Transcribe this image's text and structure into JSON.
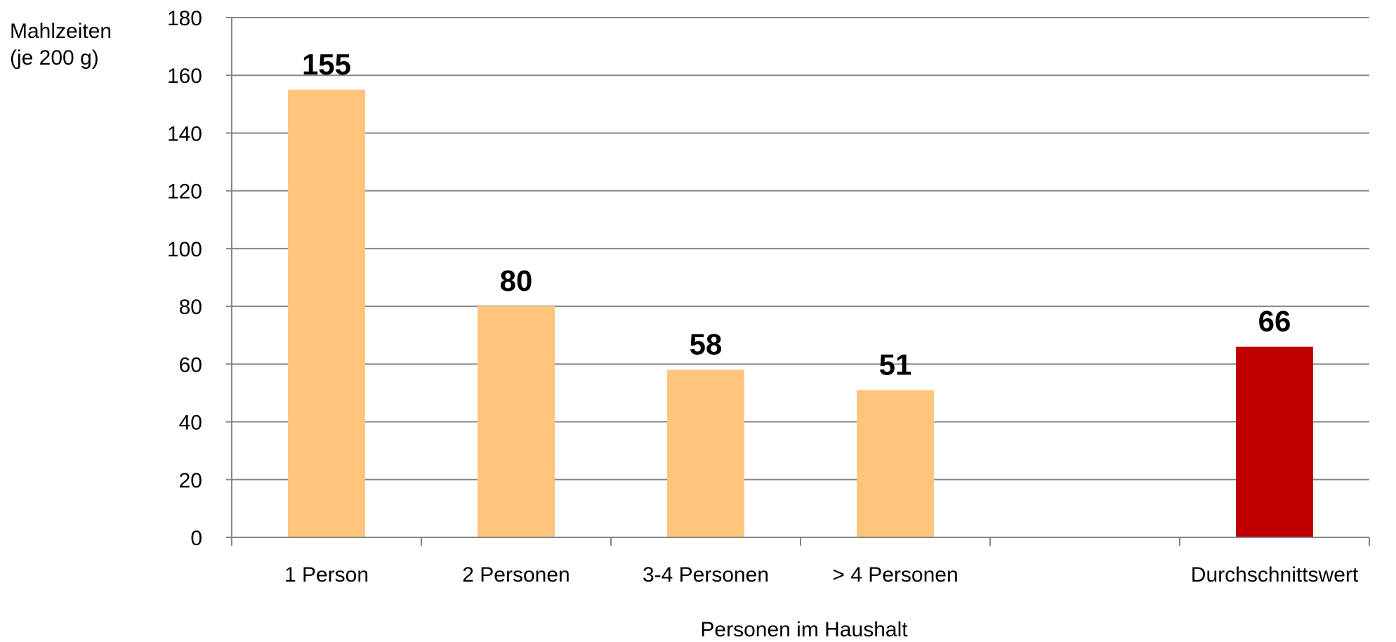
{
  "chart_data": {
    "type": "bar",
    "categories": [
      "1 Person",
      "2 Personen",
      "3-4 Personen",
      "> 4 Personen",
      "",
      "Durchschnittswert"
    ],
    "values": [
      155,
      80,
      58,
      51,
      null,
      66
    ],
    "data_labels": [
      "155",
      "80",
      "58",
      "51",
      "",
      "66"
    ],
    "bar_colors": [
      "#FFC57D",
      "#FFC57D",
      "#FFC57D",
      "#FFC57D",
      "",
      "#C00000"
    ],
    "ylabel_lines": [
      "Mahlzeiten",
      "(je 200 g)"
    ],
    "xlabel": "Personen im Haushalt",
    "ylim": [
      0,
      180
    ],
    "yticks": [
      0,
      20,
      40,
      60,
      80,
      100,
      120,
      140,
      160,
      180
    ],
    "grid": true,
    "legend": "none"
  }
}
